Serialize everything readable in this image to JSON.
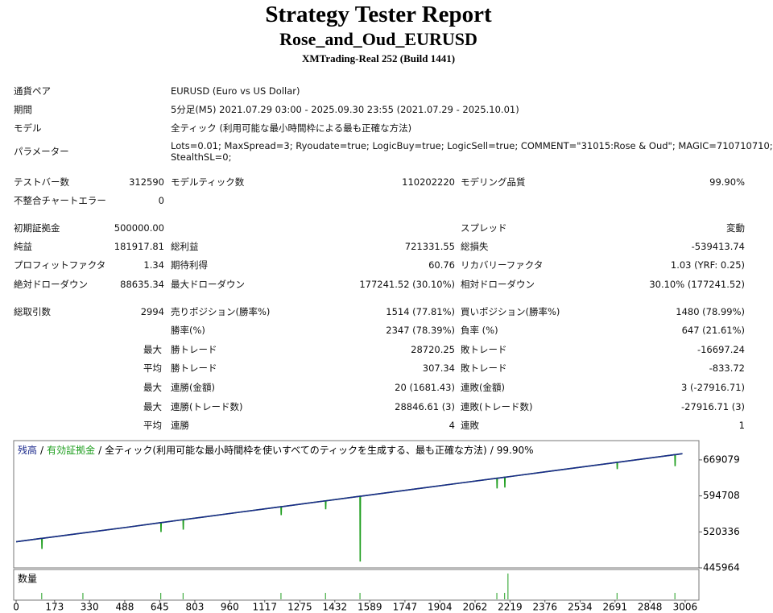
{
  "header": {
    "title": "Strategy Tester Report",
    "subtitle": "Rose_and_Oud_EURUSD",
    "server": "XMTrading-Real 252 (Build 1441)"
  },
  "info": [
    {
      "label": "通貨ペア",
      "lines": [
        "EURUSD (Euro vs US Dollar)"
      ]
    },
    {
      "label": "期間",
      "lines": [
        "5分足(M5) 2021.07.29 03:00 - 2025.09.30 23:55 (2021.07.29 - 2025.10.01)"
      ]
    },
    {
      "label": "モデル",
      "lines": [
        "全ティック (利用可能な最小時間枠による最も正確な方法)"
      ]
    },
    {
      "label": "パラメーター",
      "lines": [
        "Lots=0.01; MaxSpread=3; Ryoudate=true; LogicBuy=true; LogicSell=true; COMMENT=\"31015:Rose & Oud\"; MAGIC=710710710;",
        "StealthSL=0;"
      ]
    }
  ],
  "stats": [
    [
      "テストバー数",
      "312590",
      "モデルティック数",
      "110202220",
      "モデリング品質",
      "99.90%"
    ],
    [
      "不整合チャートエラー",
      "0",
      null,
      null,
      null,
      null
    ],
    [
      "初期証拠金",
      "500000.00",
      null,
      null,
      "スプレッド",
      "変動"
    ],
    [
      "純益",
      "181917.81",
      "総利益",
      "721331.55",
      "総損失",
      "-539413.74"
    ],
    [
      "プロフィットファクタ",
      "1.34",
      "期待利得",
      "60.76",
      "リカバリーファクタ",
      "1.03 (YRF: 0.25)"
    ],
    [
      "絶対ドローダウン",
      "88635.34",
      "最大ドローダウン",
      "177241.52 (30.10%)",
      "相対ドローダウン",
      "30.10% (177241.52)"
    ],
    [
      "総取引数",
      "2994",
      "売りポジション(勝率%)",
      "1514 (77.81%)",
      "買いポジション(勝率%)",
      "1480 (78.99%)"
    ],
    [
      null,
      null,
      "勝率(%)",
      "2347 (78.39%)",
      "負率 (%)",
      "647 (21.61%)"
    ],
    [
      null,
      "最大",
      "勝トレード",
      "28720.25",
      "敗トレード",
      "-16697.24"
    ],
    [
      null,
      "平均",
      "勝トレード",
      "307.34",
      "敗トレード",
      "-833.72"
    ],
    [
      null,
      "最大",
      "連勝(金額)",
      "20 (1681.43)",
      "連敗(金額)",
      "3 (-27916.71)"
    ],
    [
      null,
      "最大",
      "連勝(トレード数)",
      "28846.61 (3)",
      "連敗(トレード数)",
      "-27916.71 (3)"
    ],
    [
      null,
      "平均",
      "連勝",
      "4",
      "連敗",
      "1"
    ]
  ],
  "chart_data": {
    "type": "line",
    "separator": "/",
    "method": "全ティック(利用可能な最小時間枠を使いすべてのティックを生成する、最も正確な方法)",
    "quality": "99.90%",
    "x": [
      0,
      115,
      116,
      117,
      300,
      500,
      650,
      651,
      652,
      750,
      751,
      752,
      1000,
      1190,
      1191,
      1192,
      1390,
      1391,
      1392,
      1545,
      1546,
      1547,
      1800,
      2000,
      2160,
      2161,
      2162,
      2195,
      2196,
      2197,
      2400,
      2700,
      2701,
      2702,
      2960,
      2961,
      2962,
      2994
    ],
    "series": [
      {
        "name": "有効証拠金",
        "color": "#1e9e1e",
        "values": [
          500000,
          507000,
          485000,
          507000,
          518000,
          530000,
          539500,
          520000,
          539500,
          545600,
          525000,
          545600,
          560800,
          572300,
          555000,
          572300,
          584500,
          567000,
          584500,
          593900,
          459000,
          593900,
          609400,
          621500,
          631200,
          610000,
          631200,
          633300,
          612000,
          633300,
          645800,
          664000,
          650000,
          664000,
          679900,
          656000,
          679900,
          681918
        ]
      },
      {
        "name": "残高",
        "color": "#1c2a8c",
        "values": [
          500000,
          507000,
          507000,
          507000,
          518000,
          530000,
          539500,
          539500,
          539500,
          545600,
          545600,
          545600,
          560800,
          572300,
          572300,
          572300,
          584500,
          584500,
          584500,
          593900,
          593900,
          593900,
          609400,
          621500,
          631200,
          631200,
          631200,
          633300,
          633300,
          633300,
          645800,
          664000,
          664000,
          664000,
          679900,
          679900,
          679900,
          681918
        ]
      }
    ],
    "xlim": [
      -11,
      3068
    ],
    "ylim": [
      445964,
      708870
    ],
    "xticks": [
      0,
      173,
      330,
      488,
      645,
      803,
      960,
      1117,
      1275,
      1432,
      1589,
      1747,
      1904,
      2062,
      2219,
      2376,
      2534,
      2691,
      2848,
      3006
    ],
    "yticks": [
      445964,
      520336,
      594708,
      669079
    ],
    "volume": {
      "label": "数量",
      "color": "#1e9e1e",
      "x": [
        115,
        300,
        650,
        750,
        1190,
        1390,
        1545,
        2160,
        2195,
        2210,
        2700,
        2960
      ],
      "values": [
        0.01,
        0.01,
        0.01,
        0.01,
        0.01,
        0.01,
        0.01,
        0.01,
        0.01,
        0.04,
        0.01,
        0.01
      ],
      "ylim": [
        0,
        0.045
      ]
    }
  }
}
